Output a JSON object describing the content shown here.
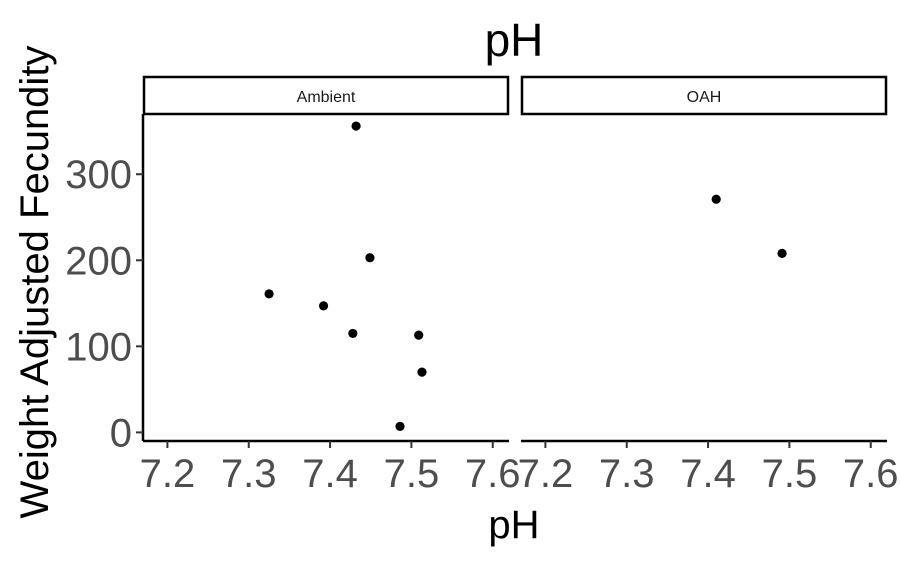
{
  "chart_data": {
    "type": "scatter",
    "title": "pH",
    "xlabel": "pH",
    "ylabel": "Weight Adjusted Fecundity",
    "xlim": [
      7.17,
      7.62
    ],
    "ylim": [
      -10,
      370
    ],
    "x_ticks": [
      7.2,
      7.3,
      7.4,
      7.5,
      7.6
    ],
    "x_tick_labels": [
      "7.2",
      "7.3",
      "7.4",
      "7.5",
      "7.6"
    ],
    "y_ticks": [
      0,
      100,
      200,
      300
    ],
    "y_tick_labels": [
      "0",
      "100",
      "200",
      "300"
    ],
    "grid": false,
    "legend": "none",
    "point_color": "#000000",
    "panels": [
      {
        "label": "Ambient",
        "points": [
          {
            "x": 7.325,
            "y": 161
          },
          {
            "x": 7.392,
            "y": 147
          },
          {
            "x": 7.428,
            "y": 115
          },
          {
            "x": 7.432,
            "y": 356
          },
          {
            "x": 7.449,
            "y": 203
          },
          {
            "x": 7.486,
            "y": 7
          },
          {
            "x": 7.509,
            "y": 113
          },
          {
            "x": 7.513,
            "y": 70
          }
        ]
      },
      {
        "label": "OAH",
        "points": [
          {
            "x": 7.41,
            "y": 271
          },
          {
            "x": 7.491,
            "y": 208
          }
        ]
      }
    ]
  }
}
